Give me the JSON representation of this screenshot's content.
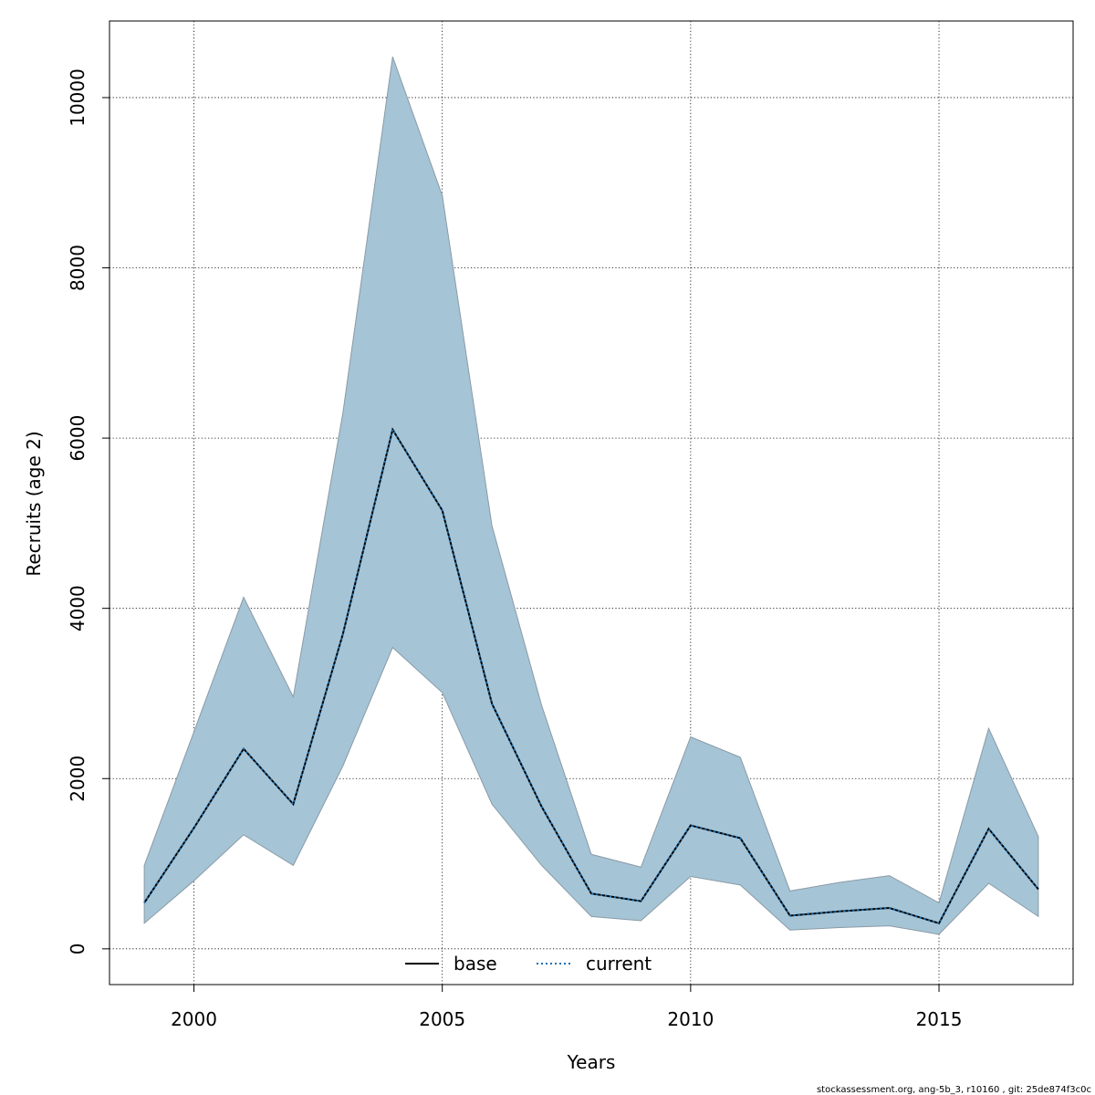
{
  "chart_data": {
    "type": "area",
    "xlabel": "Years",
    "ylabel": "Recruits (age 2)",
    "xlim": [
      1998.3,
      2017.7
    ],
    "ylim": [
      -420,
      10900
    ],
    "x_ticks": [
      "2000",
      "2005",
      "2010",
      "2015"
    ],
    "y_ticks": [
      "0",
      "2000",
      "4000",
      "6000",
      "8000",
      "10000"
    ],
    "grid": true,
    "legend_position": "bottom-center",
    "x": [
      1999,
      2000,
      2001,
      2002,
      2003,
      2004,
      2005,
      2006,
      2007,
      2008,
      2009,
      2010,
      2011,
      2012,
      2013,
      2014,
      2015,
      2016,
      2017
    ],
    "band": {
      "color": "#a5c4d6",
      "edge_color": "#8a9ba6",
      "upper": [
        980,
        2550,
        4130,
        2960,
        6300,
        10480,
        8850,
        4970,
        2860,
        1110,
        960,
        2490,
        2250,
        680,
        780,
        860,
        540,
        2590,
        1320
      ],
      "lower": [
        300,
        800,
        1340,
        980,
        2150,
        3540,
        3010,
        1700,
        980,
        380,
        330,
        850,
        750,
        220,
        250,
        270,
        170,
        770,
        380
      ]
    },
    "series": [
      {
        "name": "base",
        "color": "#000000",
        "dash": "solid",
        "values": [
          540,
          1420,
          2350,
          1700,
          3700,
          6100,
          5150,
          2880,
          1670,
          650,
          560,
          1450,
          1300,
          390,
          440,
          480,
          300,
          1410,
          700
        ]
      },
      {
        "name": "current",
        "color": "#1a6fb0",
        "dash": "dotted",
        "values": [
          540,
          1420,
          2350,
          1700,
          3700,
          6100,
          5150,
          2880,
          1670,
          650,
          560,
          1450,
          1300,
          390,
          440,
          480,
          300,
          1410,
          700
        ]
      }
    ],
    "footnote": "stockassessment.org, ang-5b_3, r10160 , git: 25de874f3c0c"
  }
}
